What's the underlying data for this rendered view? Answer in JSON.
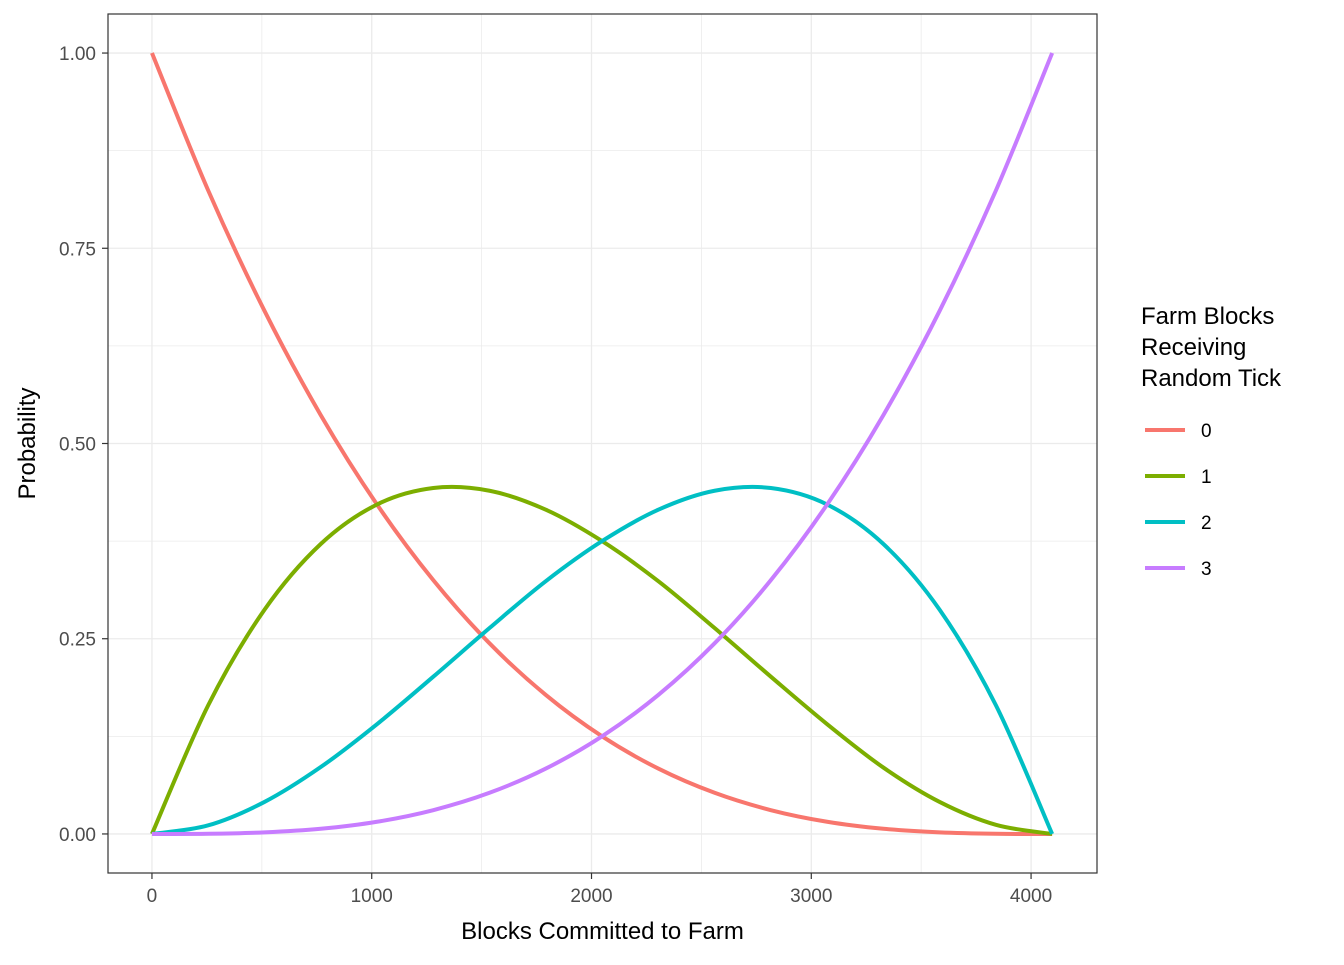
{
  "chart_data": {
    "type": "line",
    "xlabel": "Blocks Committed to Farm",
    "ylabel": "Probability",
    "xlim": [
      -200,
      4300
    ],
    "ylim": [
      -0.05,
      1.05
    ],
    "x_ticks": [
      0,
      1000,
      2000,
      3000,
      4000
    ],
    "x_tick_labels": [
      "0",
      "1000",
      "2000",
      "3000",
      "4000"
    ],
    "y_ticks": [
      0,
      0.25,
      0.5,
      0.75,
      1.0
    ],
    "y_tick_labels": [
      "0.00",
      "0.25",
      "0.50",
      "0.75",
      "1.00"
    ],
    "grid": true,
    "legend": {
      "title_lines": [
        "Farm Blocks",
        "Receiving",
        "Random Tick"
      ],
      "position": "right"
    },
    "x": [
      0,
      256,
      512,
      768,
      1024,
      1280,
      1536,
      1792,
      2048,
      2304,
      2560,
      2816,
      3072,
      3328,
      3584,
      3840,
      4096
    ],
    "series": [
      {
        "name": "0",
        "color": "#F8766D",
        "values": [
          1.0,
          0.824,
          0.6699,
          0.5364,
          0.4219,
          0.325,
          0.2441,
          0.178,
          0.125,
          0.0837,
          0.0527,
          0.0305,
          0.0156,
          0.0066,
          0.002,
          0.0002,
          0.0
        ]
      },
      {
        "name": "1",
        "color": "#7CAE00",
        "values": [
          0.0,
          0.1648,
          0.2871,
          0.3713,
          0.4219,
          0.443,
          0.4395,
          0.4152,
          0.375,
          0.3237,
          0.2637,
          0.2014,
          0.1406,
          0.085,
          0.041,
          0.0117,
          0.0
        ]
      },
      {
        "name": "2",
        "color": "#00BFC4",
        "values": [
          0.0,
          0.011,
          0.041,
          0.0857,
          0.1406,
          0.2014,
          0.2637,
          0.3237,
          0.375,
          0.4152,
          0.4395,
          0.443,
          0.4219,
          0.3713,
          0.2871,
          0.1648,
          0.0
        ]
      },
      {
        "name": "3",
        "color": "#C77CFF",
        "values": [
          0.0,
          0.0002,
          0.002,
          0.0066,
          0.0156,
          0.0305,
          0.0527,
          0.0837,
          0.125,
          0.178,
          0.2441,
          0.325,
          0.4219,
          0.5364,
          0.6699,
          0.824,
          1.0
        ]
      }
    ]
  }
}
